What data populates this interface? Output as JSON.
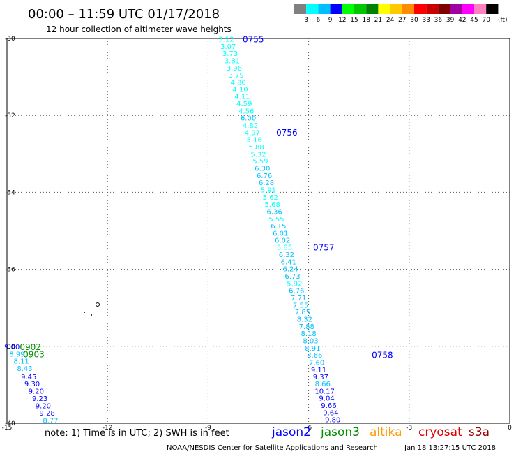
{
  "header": {
    "title": "00:00 – 11:59 UTC 01/17/2018",
    "subtitle": "12 hour collection of altimeter wave heights"
  },
  "legend_scale": {
    "labels": [
      "3",
      "6",
      "9",
      "12",
      "15",
      "18",
      "21",
      "24",
      "27",
      "30",
      "33",
      "36",
      "39",
      "42",
      "45",
      "70"
    ],
    "unit": "(ft)",
    "colors": [
      "#808080",
      "#00ffff",
      "#00bfff",
      "#0000ff",
      "#00ff00",
      "#00c800",
      "#008000",
      "#ffff00",
      "#ffc800",
      "#ff8c00",
      "#ff0000",
      "#c80000",
      "#800000",
      "#a000a0",
      "#ff00ff",
      "#ff80c0",
      "#000000"
    ]
  },
  "footer": {
    "note": "note: 1) Time is in UTC; 2) SWH is in feet",
    "satellites": [
      {
        "name": "jason2",
        "color": "#0000ff"
      },
      {
        "name": "jason3",
        "color": "#009000"
      },
      {
        "name": "altika",
        "color": "#ff9900"
      },
      {
        "name": "cryosat",
        "color": "#e00000"
      },
      {
        "name": "s3a",
        "color": "#a00000"
      }
    ],
    "credit": "NOAA/NESDIS Center for Satellite Applications and Research",
    "timestamp": "Jan 18 13:27:15 UTC 2018"
  },
  "chart_data": {
    "type": "scatter",
    "xlim": [
      -15,
      0
    ],
    "ylim": [
      -40,
      -30
    ],
    "x_ticks": [
      "-15",
      "-12",
      "-9",
      "-6",
      "-3",
      "0"
    ],
    "x_tick_values": [
      -15,
      -12,
      -9,
      -6,
      -3,
      0
    ],
    "y_ticks": [
      "-30",
      "-32",
      "-34",
      "-36",
      "-38",
      "-40"
    ],
    "y_tick_values": [
      -30,
      -32,
      -34,
      -36,
      -38,
      -40
    ],
    "grid": true,
    "tracks": [
      {
        "satellite": "jason2",
        "points": [
          {
            "lon": -8.46,
            "lat": -30.01,
            "label": "3.12"
          },
          {
            "lon": -8.4,
            "lat": -30.2,
            "label": "3.07"
          },
          {
            "lon": -8.34,
            "lat": -30.38,
            "label": "3.73"
          },
          {
            "lon": -8.28,
            "lat": -30.57,
            "label": "3.81"
          },
          {
            "lon": -8.22,
            "lat": -30.76,
            "label": "3.96"
          },
          {
            "lon": -8.16,
            "lat": -30.94,
            "label": "3.79"
          },
          {
            "lon": -8.1,
            "lat": -31.13,
            "label": "4.80"
          },
          {
            "lon": -8.04,
            "lat": -31.32,
            "label": "4.10"
          },
          {
            "lon": -7.98,
            "lat": -31.5,
            "label": "4.11"
          },
          {
            "lon": -7.92,
            "lat": -31.69,
            "label": "4.59"
          },
          {
            "lon": -7.86,
            "lat": -31.88,
            "label": "4.56"
          },
          {
            "lon": -7.8,
            "lat": -32.06,
            "label": "6.00"
          },
          {
            "lon": -7.74,
            "lat": -32.25,
            "label": "4.82"
          },
          {
            "lon": -7.68,
            "lat": -32.44,
            "label": "4.97"
          },
          {
            "lon": -7.62,
            "lat": -32.62,
            "label": "5.16"
          },
          {
            "lon": -7.56,
            "lat": -32.81,
            "label": "5.88"
          },
          {
            "lon": -7.5,
            "lat": -33.0,
            "label": "5.32"
          },
          {
            "lon": -7.44,
            "lat": -33.18,
            "label": "5.59"
          },
          {
            "lon": -7.38,
            "lat": -33.37,
            "label": "6.30"
          },
          {
            "lon": -7.32,
            "lat": -33.56,
            "label": "6.76"
          },
          {
            "lon": -7.26,
            "lat": -33.74,
            "label": "6.28"
          },
          {
            "lon": -7.2,
            "lat": -33.93,
            "label": "5.91"
          },
          {
            "lon": -7.14,
            "lat": -34.12,
            "label": "5.62"
          },
          {
            "lon": -7.08,
            "lat": -34.3,
            "label": "5.68"
          },
          {
            "lon": -7.02,
            "lat": -34.49,
            "label": "6.36"
          },
          {
            "lon": -6.96,
            "lat": -34.68,
            "label": "5.55"
          },
          {
            "lon": -6.9,
            "lat": -34.86,
            "label": "6.15"
          },
          {
            "lon": -6.84,
            "lat": -35.05,
            "label": "6.01"
          },
          {
            "lon": -6.78,
            "lat": -35.24,
            "label": "6.02"
          },
          {
            "lon": -6.72,
            "lat": -35.42,
            "label": "5.85"
          },
          {
            "lon": -6.66,
            "lat": -35.61,
            "label": "6.32"
          },
          {
            "lon": -6.6,
            "lat": -35.8,
            "label": "6.41"
          },
          {
            "lon": -6.54,
            "lat": -35.98,
            "label": "6.24"
          },
          {
            "lon": -6.48,
            "lat": -36.17,
            "label": "6.73"
          },
          {
            "lon": -6.42,
            "lat": -36.36,
            "label": "5.92"
          },
          {
            "lon": -6.36,
            "lat": -36.54,
            "label": "6.76"
          },
          {
            "lon": -6.3,
            "lat": -36.73,
            "label": "7.71"
          },
          {
            "lon": -6.24,
            "lat": -36.92,
            "label": "7.55"
          },
          {
            "lon": -6.18,
            "lat": -37.1,
            "label": "7.85"
          },
          {
            "lon": -6.12,
            "lat": -37.29,
            "label": "8.32"
          },
          {
            "lon": -6.06,
            "lat": -37.48,
            "label": "7.88"
          },
          {
            "lon": -6.0,
            "lat": -37.66,
            "label": "8.18"
          },
          {
            "lon": -5.94,
            "lat": -37.85,
            "label": "8.03"
          },
          {
            "lon": -5.88,
            "lat": -38.04,
            "label": "8.91"
          },
          {
            "lon": -5.82,
            "lat": -38.22,
            "label": "8.66"
          },
          {
            "lon": -5.76,
            "lat": -38.41,
            "label": "7.60"
          },
          {
            "lon": -5.7,
            "lat": -38.6,
            "label": "9.11"
          },
          {
            "lon": -5.64,
            "lat": -38.78,
            "label": "9.37"
          },
          {
            "lon": -5.58,
            "lat": -38.97,
            "label": "8.66"
          },
          {
            "lon": -5.52,
            "lat": -39.16,
            "label": "10.17"
          },
          {
            "lon": -5.46,
            "lat": -39.34,
            "label": "9.04"
          },
          {
            "lon": -5.4,
            "lat": -39.53,
            "label": "9.66"
          },
          {
            "lon": -5.34,
            "lat": -39.72,
            "label": "9.64"
          },
          {
            "lon": -5.28,
            "lat": -39.9,
            "label": "9.80"
          }
        ],
        "time_labels": [
          {
            "text": "0755",
            "lon": -7.65,
            "lat": -30.01
          },
          {
            "text": "0756",
            "lon": -6.65,
            "lat": -32.43
          },
          {
            "text": "0757",
            "lon": -5.55,
            "lat": -35.42
          },
          {
            "text": "0758",
            "lon": -3.8,
            "lat": -38.21
          }
        ]
      },
      {
        "satellite": "jason3",
        "points": [
          {
            "lon": -14.85,
            "lat": -38.0,
            "label": "9.00"
          },
          {
            "lon": -14.7,
            "lat": -38.19,
            "label": "8.99"
          },
          {
            "lon": -14.57,
            "lat": -38.38,
            "label": "8.11"
          },
          {
            "lon": -14.47,
            "lat": -38.57,
            "label": "8.43"
          },
          {
            "lon": -14.35,
            "lat": -38.78,
            "label": "9.45"
          },
          {
            "lon": -14.25,
            "lat": -38.97,
            "label": "9.30"
          },
          {
            "lon": -14.13,
            "lat": -39.16,
            "label": "9.20"
          },
          {
            "lon": -14.02,
            "lat": -39.35,
            "label": "9.23"
          },
          {
            "lon": -13.92,
            "lat": -39.54,
            "label": "9.20"
          },
          {
            "lon": -13.8,
            "lat": -39.73,
            "label": "9.28"
          },
          {
            "lon": -13.7,
            "lat": -39.92,
            "label": "8.77"
          }
        ],
        "time_labels": [
          {
            "text": "0902",
            "lon": -14.3,
            "lat": -38.0
          },
          {
            "text": "0903",
            "lon": -14.2,
            "lat": -38.19
          }
        ]
      }
    ]
  }
}
